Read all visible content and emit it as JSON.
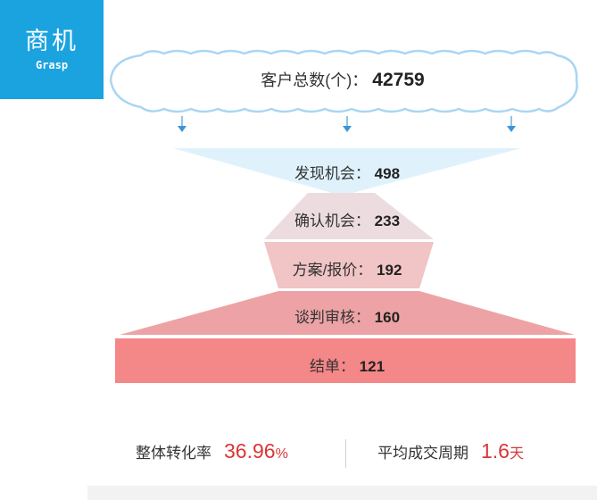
{
  "badge": {
    "title": "商机",
    "subtitle": "Grasp"
  },
  "total": {
    "label": "客户总数(个)：",
    "value": "42759"
  },
  "stages": [
    {
      "label": "发现机会：",
      "value": "498"
    },
    {
      "label": "确认机会：",
      "value": "233"
    },
    {
      "label": "方案/报价：",
      "value": "192"
    },
    {
      "label": "谈判审核：",
      "value": "160"
    },
    {
      "label": "结单：",
      "value": "121"
    }
  ],
  "metrics": {
    "conversion": {
      "label": "整体转化率",
      "value": "36.96",
      "unit": "%"
    },
    "cycle": {
      "label": "平均成交周期",
      "value": "1.6",
      "unit": "天"
    }
  },
  "colors": {
    "badge": "#1aa3df",
    "cloud_outline": "#a9d6f2",
    "stage1": "#dff2fc",
    "stage2": "#ecdcdf",
    "stage3": "#f1c4c5",
    "stage4": "#eda3a5",
    "stage5": "#f48788",
    "metric_value": "#d93636"
  }
}
